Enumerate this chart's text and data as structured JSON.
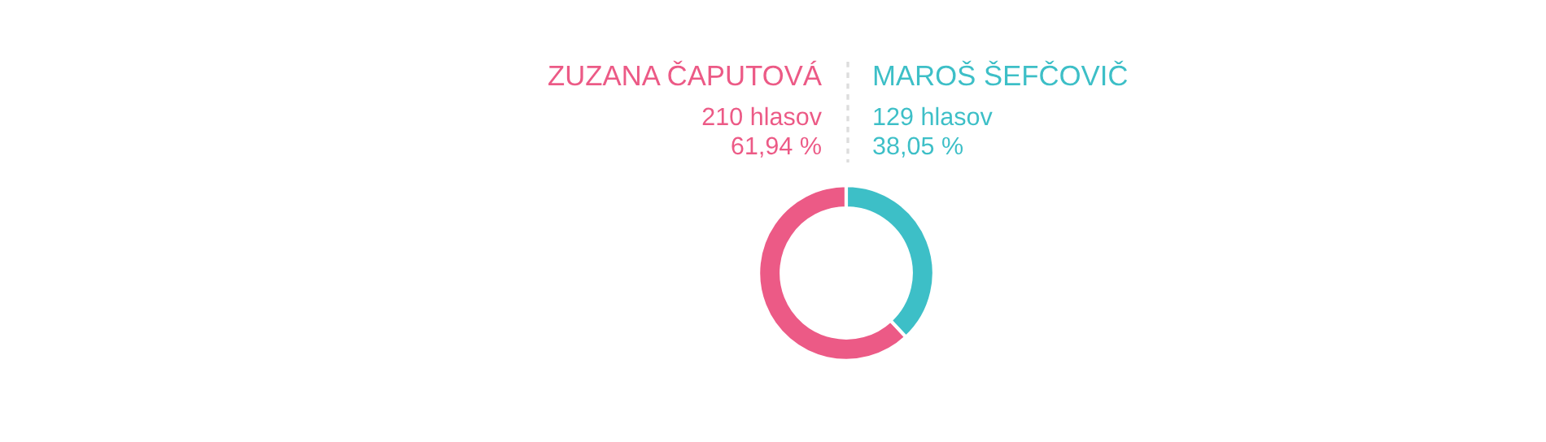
{
  "chart_data": {
    "type": "donut",
    "categories": [
      "ZUZANA ČAPUTOVÁ",
      "MAROŠ ŠEFČOVIČ"
    ],
    "values": [
      210,
      129
    ],
    "colors": [
      "#ec5a86",
      "#3dbfc7"
    ],
    "value_labels": [
      "210 hlasov",
      "129 hlasov"
    ],
    "annotations": [
      "61,94 %",
      "38,05 %"
    ]
  }
}
